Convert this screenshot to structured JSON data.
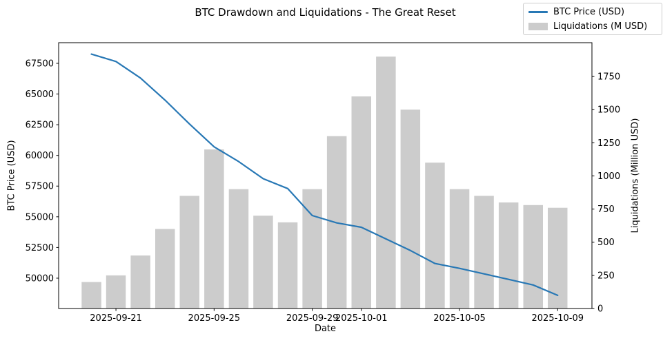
{
  "figure": {
    "title": "BTC Drawdown and Liquidations - The Great Reset"
  },
  "legend": {
    "items": [
      {
        "label": "BTC Price (USD)",
        "swatch": "line",
        "color": "#2878b5"
      },
      {
        "label": "Liquidations (M USD)",
        "swatch": "bar",
        "color": "#cccccc"
      }
    ]
  },
  "chart_data": {
    "type": "line+bar",
    "title": "BTC Drawdown and Liquidations - The Great Reset",
    "xlabel": "Date",
    "ylabel_left": "BTC Price (USD)",
    "ylabel_right": "Liquidations (Million USD)",
    "grid": false,
    "legend_position": "upper right, outside axes",
    "x": [
      "2025-09-20",
      "2025-09-21",
      "2025-09-22",
      "2025-09-23",
      "2025-09-24",
      "2025-09-25",
      "2025-09-26",
      "2025-09-27",
      "2025-09-28",
      "2025-09-29",
      "2025-09-30",
      "2025-10-01",
      "2025-10-02",
      "2025-10-03",
      "2025-10-04",
      "2025-10-05",
      "2025-10-06",
      "2025-10-07",
      "2025-10-08",
      "2025-10-09"
    ],
    "series": [
      {
        "name": "BTC Price (USD)",
        "type": "line",
        "axis": "left",
        "color": "#2878b5",
        "values": [
          68250,
          67650,
          66300,
          64500,
          62550,
          60700,
          59500,
          58100,
          57300,
          55100,
          54500,
          54150,
          53200,
          52250,
          51200,
          50800,
          50350,
          49900,
          49450,
          48600
        ]
      },
      {
        "name": "Liquidations (M USD)",
        "type": "bar",
        "axis": "right",
        "color": "#cccccc",
        "values": [
          200,
          250,
          400,
          600,
          850,
          1200,
          900,
          700,
          650,
          900,
          1300,
          1600,
          1900,
          1500,
          1100,
          900,
          850,
          800,
          780,
          760
        ]
      }
    ],
    "left_axis": {
      "label": "BTC Price (USD)",
      "ticks": [
        50000,
        52500,
        55000,
        57500,
        60000,
        62500,
        65000,
        67500
      ],
      "range": [
        47530,
        69180
      ]
    },
    "right_axis": {
      "label": "Liquidations (Million USD)",
      "ticks": [
        0,
        250,
        500,
        750,
        1000,
        1250,
        1500,
        1750
      ],
      "range": [
        0,
        2005
      ]
    },
    "x_ticks": [
      {
        "index": 1,
        "label": "2025-09-21"
      },
      {
        "index": 5,
        "label": "2025-09-25"
      },
      {
        "index": 9,
        "label": "2025-09-29"
      },
      {
        "index": 11,
        "label": "2025-10-01"
      },
      {
        "index": 15,
        "label": "2025-10-05"
      },
      {
        "index": 19,
        "label": "2025-10-09"
      }
    ]
  }
}
